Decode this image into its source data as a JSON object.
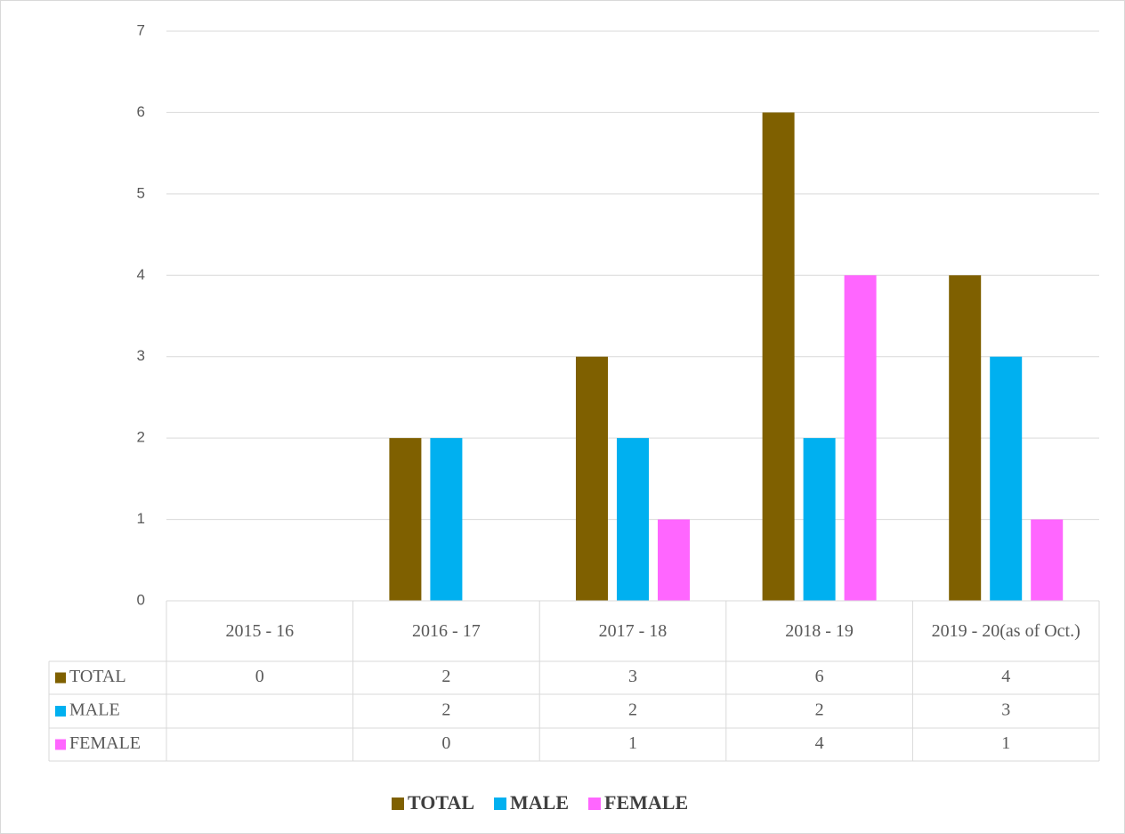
{
  "chart_data": {
    "type": "bar",
    "categories": [
      "2015 - 16",
      "2016 - 17",
      "2017 - 18",
      "2018 - 19",
      "2019 - 20(as of Oct.)"
    ],
    "series": [
      {
        "name": "TOTAL",
        "color": "#7f6000",
        "values": [
          0,
          2,
          3,
          6,
          4
        ]
      },
      {
        "name": "MALE",
        "color": "#00b0f0",
        "values": [
          null,
          2,
          2,
          2,
          3
        ]
      },
      {
        "name": "FEMALE",
        "color": "#ff66ff",
        "values": [
          null,
          0,
          1,
          4,
          1
        ]
      }
    ],
    "ylim": [
      0,
      7
    ],
    "yticks": [
      0,
      1,
      2,
      3,
      4,
      5,
      6,
      7
    ],
    "grid": true,
    "legend": "bottom"
  }
}
